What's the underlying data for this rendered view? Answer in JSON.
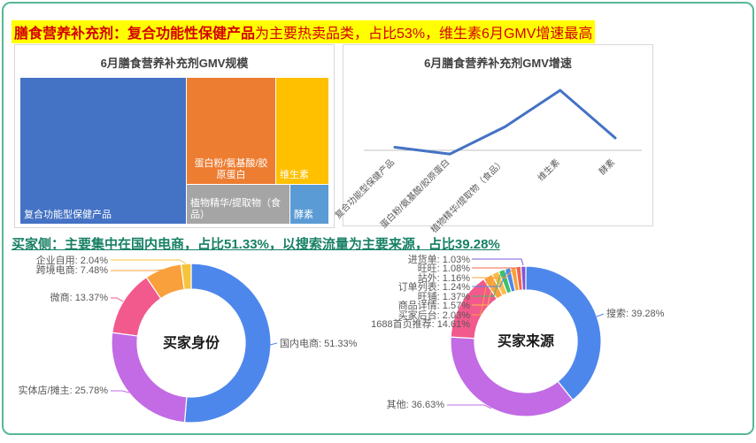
{
  "header": {
    "headline1_bold": "膳食营养补充剂：复合功能性保健产品",
    "headline1_rest": "为主要热卖品类，占比53%，维生素6月GMV增速最高",
    "headline1_color": "#D40000",
    "headline1_highlight": "#FFFF00",
    "headline2": "买家侧：主要集中在国内电商，占比51.33%，以搜索流量为主要来源，占比39.28%",
    "headline2_color": "#178064",
    "page_border_color": "#57B894"
  },
  "chart_data": [
    {
      "type": "treemap",
      "title": "6月膳食营养补充剂GMV规模",
      "items": [
        {
          "label": "复合功能型保健产品",
          "share_pct": 53,
          "color": "#4472C4"
        },
        {
          "label": "蛋白粉/氨基酸/胶原蛋白",
          "share_pct": 21,
          "color": "#ED7D31"
        },
        {
          "label": "维生素",
          "share_pct": 13,
          "color": "#FFC000"
        },
        {
          "label": "植物精华/提取物（食品）",
          "share_pct": 10,
          "color": "#A5A5A5"
        },
        {
          "label": "酵素",
          "share_pct": 3,
          "color": "#5B9BD5"
        }
      ]
    },
    {
      "type": "line",
      "title": "6月膳食营养补充剂GMV增速",
      "categories": [
        "复合功能型保健产品",
        "蛋白粉/氨基酸/胶原蛋白",
        "植物精华/提取物（食品）",
        "维生素",
        "酵素"
      ],
      "values": [
        5,
        -6,
        38,
        97,
        20
      ],
      "line_color": "#4472C4",
      "axis_color": "#C0C0C0",
      "grid": false,
      "legend": false
    },
    {
      "type": "pie",
      "subtype": "donut",
      "title": "买家身份",
      "slices": [
        {
          "label": "国内电商",
          "value": 51.33,
          "color": "#4E87EC"
        },
        {
          "label": "实体店/摊主",
          "value": 25.78,
          "color": "#C26BE4"
        },
        {
          "label": "微商",
          "value": 13.37,
          "color": "#F2598C"
        },
        {
          "label": "跨境电商",
          "value": 7.48,
          "color": "#F9A03C"
        },
        {
          "label": "企业自用",
          "value": 2.04,
          "color": "#F6C33C"
        }
      ]
    },
    {
      "type": "pie",
      "subtype": "donut",
      "title": "买家来源",
      "slices": [
        {
          "label": "搜索",
          "value": 39.28,
          "color": "#4E87EC"
        },
        {
          "label": "其他",
          "value": 36.63,
          "color": "#C26BE4"
        },
        {
          "label": "1688首页推荐",
          "value": 14.61,
          "color": "#F2598C"
        },
        {
          "label": "买家后台",
          "value": 2.03,
          "color": "#F9A03C"
        },
        {
          "label": "商品详情",
          "value": 1.57,
          "color": "#FBBC4A"
        },
        {
          "label": "旺铺",
          "value": 1.37,
          "color": "#3EC06A"
        },
        {
          "label": "订单列表",
          "value": 1.24,
          "color": "#4E87EC"
        },
        {
          "label": "站外",
          "value": 1.16,
          "color": "#F9A03C"
        },
        {
          "label": "旺旺",
          "value": 1.08,
          "color": "#F5634A"
        },
        {
          "label": "进货单",
          "value": 1.03,
          "color": "#7E57DC"
        }
      ]
    }
  ]
}
